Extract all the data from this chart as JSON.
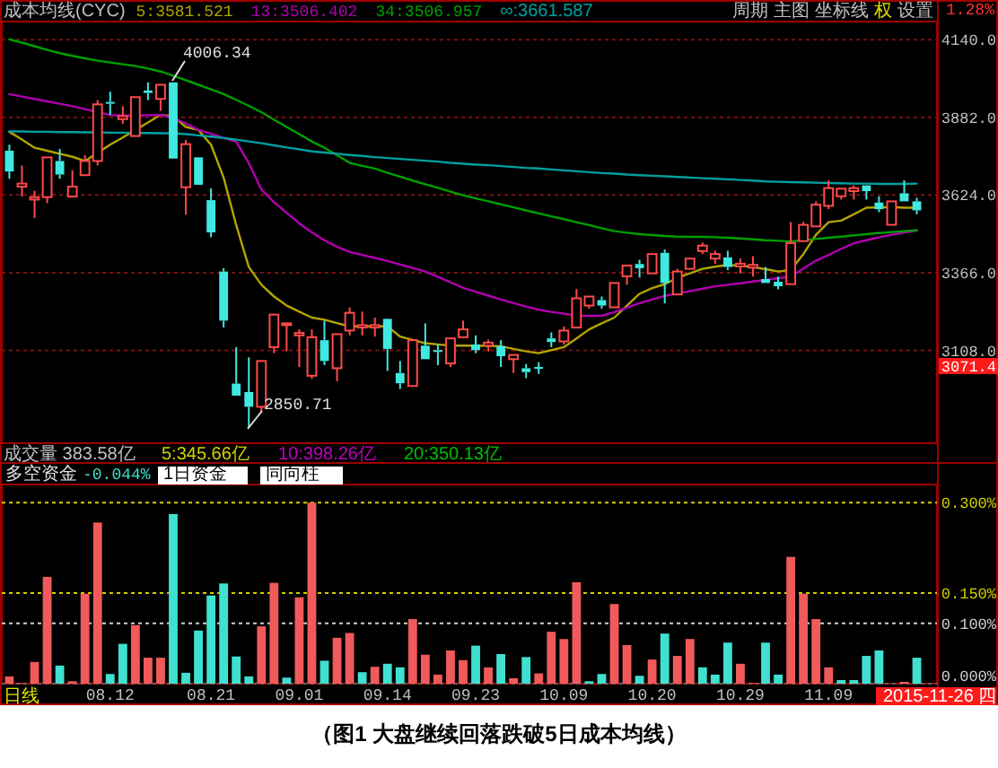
{
  "chart_data": [
    {
      "type": "candlestick",
      "legend_title": "成本均线(CYC)",
      "legend": "top left",
      "grid": "y",
      "tick_labels": "y",
      "categories": [
        null,
        null,
        null,
        null,
        null,
        null,
        null,
        null,
        "08.12",
        null,
        null,
        null,
        null,
        null,
        null,
        null,
        "08.21",
        null,
        null,
        null,
        null,
        null,
        null,
        "09.01",
        null,
        null,
        null,
        null,
        null,
        null,
        "09.14",
        null,
        null,
        null,
        null,
        null,
        null,
        "09.23",
        null,
        null,
        null,
        null,
        null,
        null,
        "10.09",
        null,
        null,
        null,
        null,
        null,
        null,
        "10.20",
        null,
        null,
        null,
        null,
        null,
        null,
        "10.29",
        null,
        null,
        null,
        null,
        null,
        null,
        "11.09",
        null,
        null,
        null,
        null,
        null,
        null,
        null
      ],
      "ylim": [
        2800,
        4200
      ],
      "yticks": [
        {
          "value": 3108,
          "label": "3108.0"
        },
        {
          "value": 3366,
          "label": "3366.0"
        },
        {
          "value": 3624,
          "label": "3624.0"
        },
        {
          "value": 3882,
          "label": "3882.0"
        },
        {
          "value": 4140,
          "label": "4140.0"
        }
      ],
      "ohlc": [
        [
          3771,
          3791,
          3678,
          3702
        ],
        [
          3652,
          3722,
          3619,
          3662
        ],
        [
          3609,
          3638,
          3548,
          3617
        ],
        [
          3617,
          3753,
          3597,
          3749
        ],
        [
          3737,
          3777,
          3678,
          3692
        ],
        [
          3619,
          3706,
          3617,
          3652
        ],
        [
          3690,
          3757,
          3686,
          3737
        ],
        [
          3737,
          3939,
          3722,
          3925
        ],
        [
          3933,
          3967,
          3890,
          3927
        ],
        [
          3876,
          3919,
          3860,
          3886
        ],
        [
          3820,
          3955,
          3816,
          3949
        ],
        [
          3971,
          3998,
          3939,
          3963
        ],
        [
          3943,
          3998,
          3903,
          3990
        ],
        [
          3998,
          4006.34,
          3741,
          3745
        ],
        [
          3650,
          3807,
          3559,
          3793
        ],
        [
          3749,
          3755,
          3656,
          3658
        ],
        [
          3607,
          3646,
          3484,
          3500
        ],
        [
          3370,
          3381,
          3184,
          3207
        ],
        [
          2998,
          3119,
          2950,
          2958
        ],
        [
          2970,
          3085,
          2850.71,
          2921
        ],
        [
          2921,
          3079,
          2901,
          3073
        ],
        [
          3119,
          3231,
          3099,
          3227
        ],
        [
          3192,
          3202,
          3105,
          3198
        ],
        [
          3158,
          3178,
          3053,
          3166
        ],
        [
          3024,
          3178,
          3014,
          3152
        ],
        [
          3142,
          3207,
          3059,
          3073
        ],
        [
          3049,
          3168,
          3006,
          3162
        ],
        [
          3174,
          3251,
          3158,
          3233
        ],
        [
          3184,
          3237,
          3158,
          3192
        ],
        [
          3184,
          3217,
          3154,
          3192
        ],
        [
          3213,
          3221,
          3040,
          3113
        ],
        [
          3033,
          3073,
          2980,
          2999
        ],
        [
          2990,
          3148,
          2986,
          3142
        ],
        [
          3124,
          3198,
          3073,
          3079
        ],
        [
          3109,
          3128,
          3059,
          3103
        ],
        [
          3065,
          3154,
          3053,
          3148
        ],
        [
          3152,
          3207,
          3148,
          3178
        ],
        [
          3128,
          3158,
          3099,
          3109
        ],
        [
          3124,
          3144,
          3105,
          3134
        ],
        [
          3122,
          3142,
          3053,
          3089
        ],
        [
          3079,
          3099,
          3033,
          3093
        ],
        [
          3049,
          3063,
          3016,
          3036
        ],
        [
          3053,
          3069,
          3030,
          3049
        ],
        [
          3148,
          3168,
          3119,
          3136
        ],
        [
          3138,
          3188,
          3128,
          3174
        ],
        [
          3184,
          3312,
          3178,
          3281
        ],
        [
          3257,
          3291,
          3247,
          3287
        ],
        [
          3275,
          3287,
          3247,
          3257
        ],
        [
          3251,
          3336,
          3247,
          3332
        ],
        [
          3354,
          3396,
          3326,
          3390
        ],
        [
          3395,
          3409,
          3350,
          3381
        ],
        [
          3364,
          3434,
          3360,
          3428
        ],
        [
          3432,
          3443,
          3264,
          3332
        ],
        [
          3294,
          3379,
          3289,
          3370
        ],
        [
          3379,
          3417,
          3375,
          3413
        ],
        [
          3438,
          3466,
          3428,
          3456
        ],
        [
          3413,
          3439,
          3396,
          3428
        ],
        [
          3417,
          3439,
          3375,
          3385
        ],
        [
          3387,
          3413,
          3364,
          3396
        ],
        [
          3383,
          3421,
          3353,
          3392
        ],
        [
          3345,
          3385,
          3328,
          3332
        ],
        [
          3336,
          3353,
          3311,
          3321
        ],
        [
          3328,
          3534,
          3328,
          3464
        ],
        [
          3471,
          3535,
          3464,
          3525
        ],
        [
          3520,
          3603,
          3514,
          3592
        ],
        [
          3588,
          3673,
          3577,
          3647
        ],
        [
          3620,
          3651,
          3609,
          3645
        ],
        [
          3637,
          3656,
          3609,
          3647
        ],
        [
          3656,
          3662,
          3609,
          3637
        ],
        [
          3599,
          3620,
          3567,
          3577
        ],
        [
          3525,
          3609,
          3520,
          3603
        ],
        [
          3630,
          3673,
          3599,
          3603
        ],
        [
          3603,
          3615,
          3560,
          3573
        ]
      ],
      "series": [
        {
          "type": "line",
          "name": "5:3581.521",
          "color": "#b4a400",
          "values": [
            3834,
            3808,
            3781,
            3771,
            3761,
            3751,
            3737,
            3764,
            3791,
            3815,
            3840,
            3865,
            3890,
            3886,
            3850,
            3840,
            3791,
            3682,
            3524,
            3385,
            3326,
            3287,
            3257,
            3237,
            3217,
            3210,
            3199,
            3188,
            3188,
            3188,
            3188,
            3154,
            3143,
            3132,
            3128,
            3124,
            3124,
            3124,
            3123,
            3122,
            3113,
            3105,
            3099,
            3109,
            3119,
            3148,
            3178,
            3198,
            3217,
            3257,
            3296,
            3315,
            3328,
            3349,
            3364,
            3379,
            3386,
            3392,
            3389,
            3385,
            3378,
            3370,
            3375,
            3428,
            3492,
            3534,
            3539,
            3560,
            3582,
            3583,
            3584,
            3582,
            3582
          ]
        },
        {
          "type": "line",
          "name": "13:3506.402",
          "color": "#b000b0",
          "values": [
            3959,
            3951,
            3943,
            3935,
            3927,
            3919,
            3909,
            3899,
            3890,
            3888,
            3888,
            3889,
            3890,
            3880,
            3862,
            3840,
            3827,
            3814,
            3801,
            3730,
            3642,
            3600,
            3565,
            3530,
            3500,
            3474,
            3452,
            3435,
            3425,
            3415,
            3405,
            3393,
            3382,
            3370,
            3352,
            3334,
            3316,
            3303,
            3290,
            3277,
            3265,
            3254,
            3243,
            3236,
            3230,
            3223,
            3223,
            3223,
            3235,
            3250,
            3265,
            3277,
            3289,
            3297,
            3305,
            3313,
            3321,
            3326,
            3331,
            3337,
            3342,
            3348,
            3353,
            3380,
            3406,
            3425,
            3445,
            3464,
            3474,
            3483,
            3492,
            3500,
            3506
          ]
        },
        {
          "type": "line",
          "name": "34:3506.957",
          "color": "#00a000",
          "values": [
            4141,
            4130,
            4118,
            4106,
            4095,
            4086,
            4078,
            4070,
            4064,
            4058,
            4052,
            4044,
            4034,
            4020,
            4005,
            3990,
            3975,
            3959,
            3940,
            3920,
            3899,
            3874,
            3850,
            3826,
            3802,
            3781,
            3756,
            3731,
            3721,
            3712,
            3698,
            3685,
            3672,
            3660,
            3648,
            3635,
            3623,
            3613,
            3603,
            3593,
            3583,
            3573,
            3563,
            3553,
            3544,
            3534,
            3524,
            3514,
            3504,
            3499,
            3494,
            3491,
            3488,
            3486,
            3485,
            3485,
            3484,
            3482,
            3480,
            3477,
            3474,
            3472,
            3470,
            3474,
            3478,
            3482,
            3486,
            3490,
            3494,
            3498,
            3501,
            3504,
            3507
          ]
        },
        {
          "type": "line",
          "name": "∞:3661.587",
          "color": "#00a0a0",
          "values": [
            3835,
            3835,
            3834,
            3834,
            3833,
            3833,
            3832,
            3832,
            3831,
            3831,
            3830,
            3830,
            3829,
            3829,
            3826,
            3822,
            3818,
            3813,
            3808,
            3802,
            3796,
            3789,
            3782,
            3776,
            3769,
            3765,
            3761,
            3757,
            3754,
            3750,
            3747,
            3744,
            3741,
            3738,
            3735,
            3731,
            3728,
            3725,
            3723,
            3720,
            3717,
            3714,
            3712,
            3709,
            3706,
            3703,
            3700,
            3697,
            3695,
            3692,
            3690,
            3688,
            3686,
            3684,
            3682,
            3680,
            3678,
            3676,
            3674,
            3672,
            3669,
            3668,
            3667,
            3666,
            3665,
            3664,
            3663,
            3662,
            3662,
            3661,
            3661,
            3661,
            3662
          ]
        }
      ],
      "annotations": [
        "周期",
        "主图",
        "坐标线",
        "权",
        "设置",
        "1.28%",
        "4006.34",
        "2850.71",
        "3071.4"
      ]
    },
    {
      "type": "bar",
      "title": "多空资金",
      "grid": "y",
      "ref_lines": [
        {
          "axis": "y",
          "value": 0.1,
          "color": "#d0d0d0",
          "line_style": "dotted"
        }
      ],
      "categories": [
        null,
        null,
        null,
        null,
        null,
        null,
        null,
        null,
        "08.12",
        null,
        null,
        null,
        null,
        null,
        null,
        null,
        "08.21",
        null,
        null,
        null,
        null,
        null,
        null,
        "09.01",
        null,
        null,
        null,
        null,
        null,
        null,
        "09.14",
        null,
        null,
        null,
        null,
        null,
        null,
        "09.23",
        null,
        null,
        null,
        null,
        null,
        null,
        "10.09",
        null,
        null,
        null,
        null,
        null,
        null,
        "10.20",
        null,
        null,
        null,
        null,
        null,
        null,
        "10.29",
        null,
        null,
        null,
        null,
        null,
        null,
        "11.09",
        null,
        null,
        null,
        null,
        null,
        null,
        null
      ],
      "ylim": [
        0,
        0.33
      ],
      "yticks": [
        {
          "value": 0,
          "label": "0.000%"
        },
        {
          "value": 0.1,
          "label": "0.100%"
        },
        {
          "value": 0.15,
          "label": "0.150%"
        },
        {
          "value": 0.3,
          "label": "0.300%"
        }
      ],
      "values": [
        0.012,
        0.001,
        0.036,
        0.177,
        0.03,
        0.004,
        0.149,
        0.267,
        0.016,
        0.066,
        0.097,
        0.043,
        0.043,
        0.281,
        0.018,
        0.088,
        0.146,
        0.166,
        0.045,
        0.012,
        0.095,
        0.167,
        0.01,
        0.143,
        0.3,
        0.038,
        0.076,
        0.084,
        0.019,
        0.028,
        0.033,
        0.027,
        0.107,
        0.048,
        0.015,
        0.055,
        0.039,
        0.063,
        0.027,
        0.049,
        0.009,
        0.044,
        0.017,
        0.086,
        0.074,
        0.168,
        0.004,
        0.016,
        0.132,
        0.064,
        0.013,
        0.04,
        0.083,
        0.046,
        0.074,
        0.027,
        0.015,
        0.068,
        0.033,
        0.001,
        0.068,
        0.015,
        0.21,
        0.149,
        0.107,
        0.027,
        0.006,
        0.006,
        0.046,
        0.055,
        null,
        0.003,
        0.043
      ],
      "colors": [
        "#f05a5a",
        "#f05a5a",
        "#f05a5a",
        "#f05a5a",
        "#40e0d0",
        "#f05a5a",
        "#f05a5a",
        "#f05a5a",
        "#40e0d0",
        "#40e0d0",
        "#f05a5a",
        "#f05a5a",
        "#f05a5a",
        "#40e0d0",
        "#40e0d0",
        "#40e0d0",
        "#40e0d0",
        "#40e0d0",
        "#40e0d0",
        "#40e0d0",
        "#f05a5a",
        "#f05a5a",
        "#40e0d0",
        "#f05a5a",
        "#f05a5a",
        "#40e0d0",
        "#f05a5a",
        "#f05a5a",
        "#40e0d0",
        "#f05a5a",
        "#40e0d0",
        "#40e0d0",
        "#f05a5a",
        "#f05a5a",
        "#f05a5a",
        "#f05a5a",
        "#f05a5a",
        "#40e0d0",
        "#f05a5a",
        "#40e0d0",
        "#f05a5a",
        "#40e0d0",
        "#f05a5a",
        "#f05a5a",
        "#f05a5a",
        "#f05a5a",
        "#40e0d0",
        "#40e0d0",
        "#f05a5a",
        "#f05a5a",
        "#40e0d0",
        "#f05a5a",
        "#40e0d0",
        "#f05a5a",
        "#f05a5a",
        "#40e0d0",
        "#40e0d0",
        "#40e0d0",
        "#f05a5a",
        "#f05a5a",
        "#40e0d0",
        "#40e0d0",
        "#f05a5a",
        "#f05a5a",
        "#f05a5a",
        "#f05a5a",
        "#40e0d0",
        "#40e0d0",
        "#40e0d0",
        "#40e0d0",
        null,
        "#f05a5a",
        "#40e0d0"
      ],
      "annotations": [
        "成交量 383.58亿",
        "5:345.66亿",
        "10:398.26亿",
        "20:350.13亿",
        "-0.044%",
        "1日资金",
        "同向柱",
        "日线",
        "2015-11-26 四",
        "（图1 大盘继续回落跌破5日成本均线）"
      ]
    }
  ]
}
